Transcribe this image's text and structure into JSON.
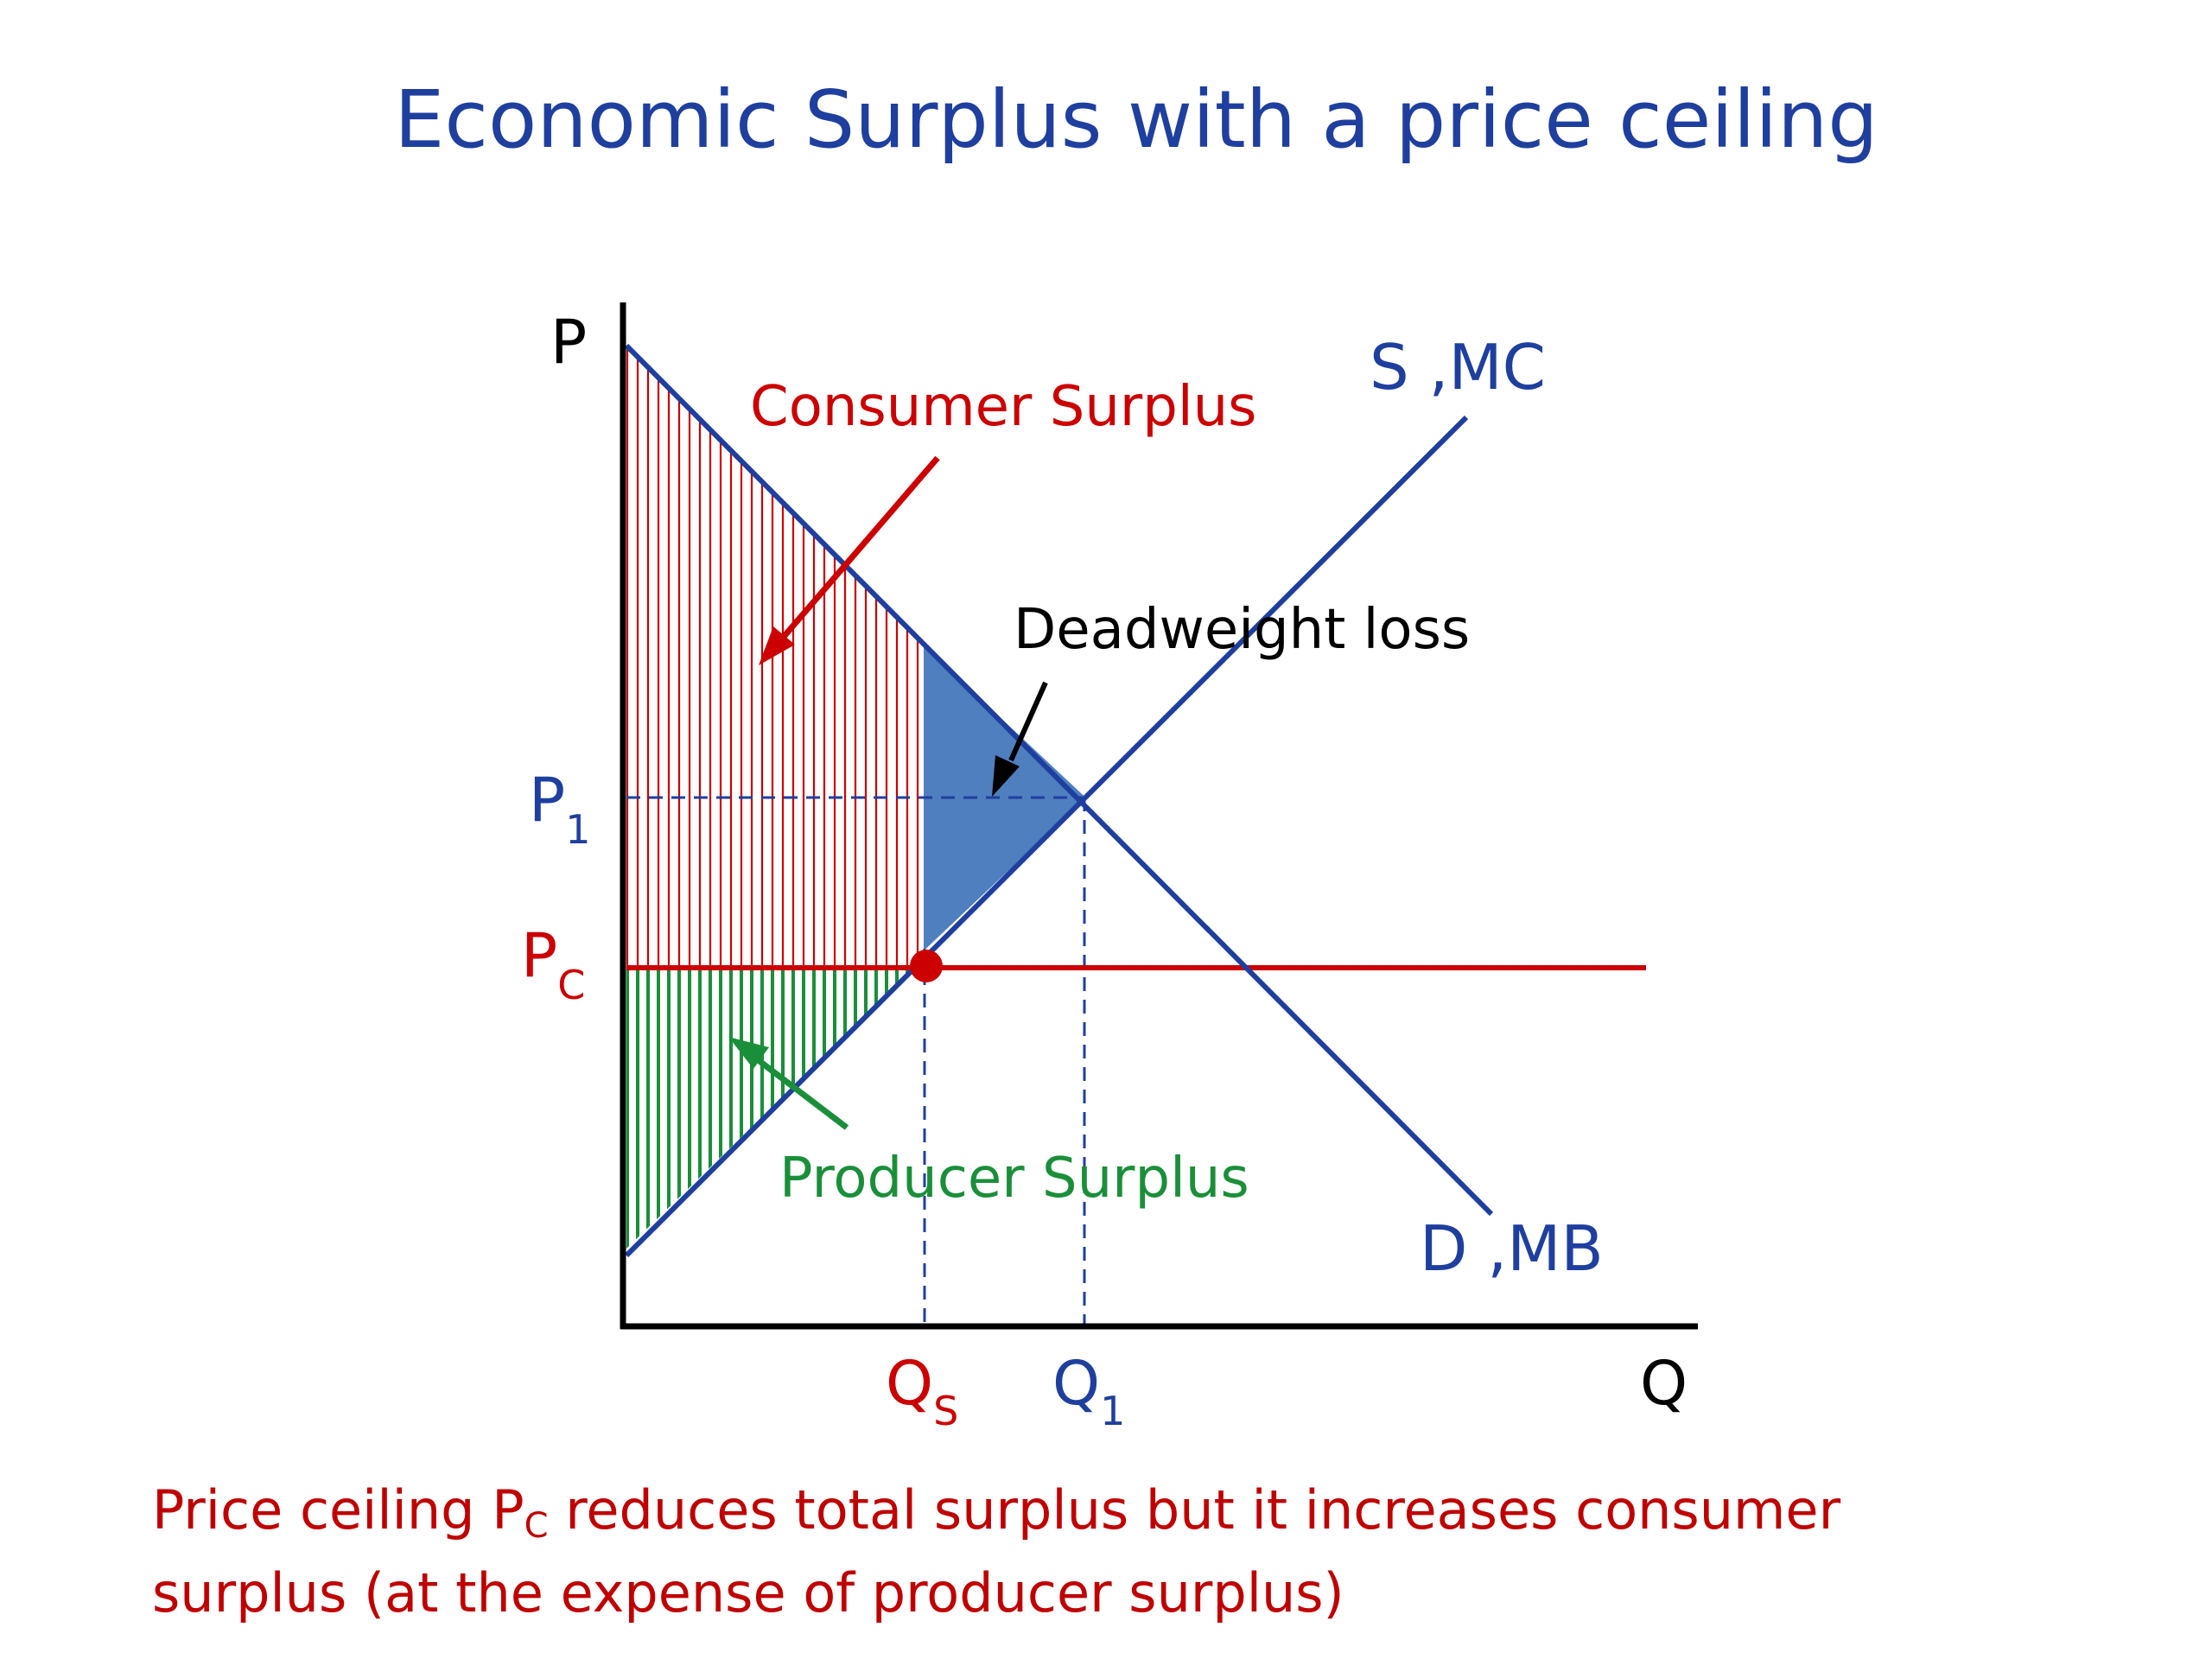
{
  "title": "Economic Surplus with a price ceiling",
  "axes": {
    "y_label": "P",
    "x_label": "Q"
  },
  "curves": {
    "supply_label": "S ,MC",
    "demand_label": "D ,MB",
    "price_ceiling_color": "#cc0000",
    "curve_color": "#1f3f9f"
  },
  "price_labels": {
    "p1_main": "P",
    "p1_sub": "1",
    "pc_main": "P",
    "pc_sub": "C"
  },
  "quantity_labels": {
    "qs_main": "Q",
    "qs_sub": "S",
    "q1_main": "Q",
    "q1_sub": "1"
  },
  "regions": {
    "consumer_surplus": "Consumer Surplus",
    "producer_surplus": "Producer Surplus",
    "deadweight_loss": "Deadweight loss",
    "consumer_color": "#cc0000",
    "producer_color": "#1a8f3a",
    "deadweight_color": "#4f7fbf"
  },
  "caption": {
    "line1_before": "Price ceiling P",
    "line1_sub": "C",
    "line1_after": " reduces total surplus but it increases consumer",
    "line2": "surplus (at the expense of producer surplus)"
  }
}
